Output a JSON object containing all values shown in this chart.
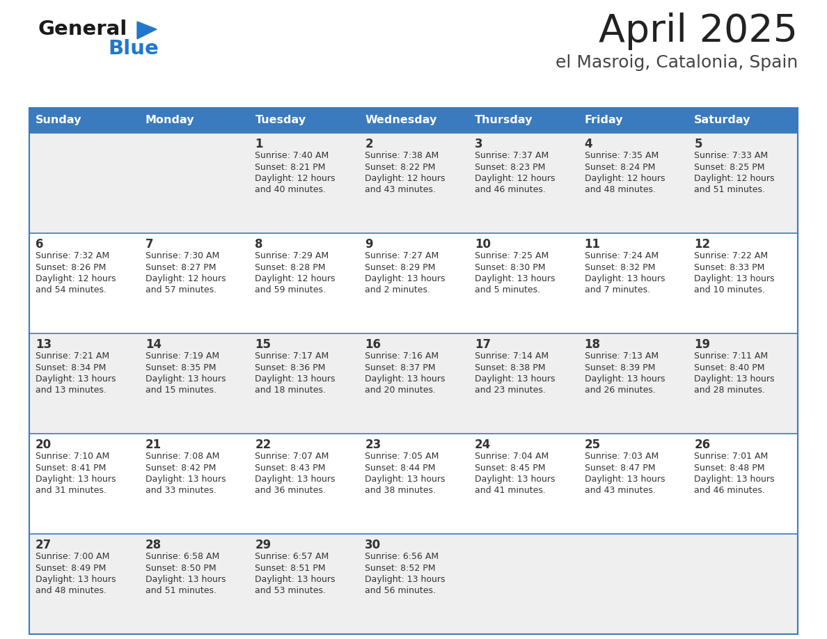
{
  "title": "April 2025",
  "subtitle": "el Masroig, Catalonia, Spain",
  "header_bg": "#3a7abf",
  "header_text_color": "#ffffff",
  "days_of_week": [
    "Sunday",
    "Monday",
    "Tuesday",
    "Wednesday",
    "Thursday",
    "Friday",
    "Saturday"
  ],
  "cell_bg_odd": "#efefef",
  "cell_bg_even": "#ffffff",
  "cell_border_color": "#3a7abf",
  "text_color": "#333333",
  "title_color": "#222222",
  "subtitle_color": "#444444",
  "calendar": [
    [
      {
        "day": "",
        "info": ""
      },
      {
        "day": "",
        "info": ""
      },
      {
        "day": "1",
        "info": "Sunrise: 7:40 AM\nSunset: 8:21 PM\nDaylight: 12 hours\nand 40 minutes."
      },
      {
        "day": "2",
        "info": "Sunrise: 7:38 AM\nSunset: 8:22 PM\nDaylight: 12 hours\nand 43 minutes."
      },
      {
        "day": "3",
        "info": "Sunrise: 7:37 AM\nSunset: 8:23 PM\nDaylight: 12 hours\nand 46 minutes."
      },
      {
        "day": "4",
        "info": "Sunrise: 7:35 AM\nSunset: 8:24 PM\nDaylight: 12 hours\nand 48 minutes."
      },
      {
        "day": "5",
        "info": "Sunrise: 7:33 AM\nSunset: 8:25 PM\nDaylight: 12 hours\nand 51 minutes."
      }
    ],
    [
      {
        "day": "6",
        "info": "Sunrise: 7:32 AM\nSunset: 8:26 PM\nDaylight: 12 hours\nand 54 minutes."
      },
      {
        "day": "7",
        "info": "Sunrise: 7:30 AM\nSunset: 8:27 PM\nDaylight: 12 hours\nand 57 minutes."
      },
      {
        "day": "8",
        "info": "Sunrise: 7:29 AM\nSunset: 8:28 PM\nDaylight: 12 hours\nand 59 minutes."
      },
      {
        "day": "9",
        "info": "Sunrise: 7:27 AM\nSunset: 8:29 PM\nDaylight: 13 hours\nand 2 minutes."
      },
      {
        "day": "10",
        "info": "Sunrise: 7:25 AM\nSunset: 8:30 PM\nDaylight: 13 hours\nand 5 minutes."
      },
      {
        "day": "11",
        "info": "Sunrise: 7:24 AM\nSunset: 8:32 PM\nDaylight: 13 hours\nand 7 minutes."
      },
      {
        "day": "12",
        "info": "Sunrise: 7:22 AM\nSunset: 8:33 PM\nDaylight: 13 hours\nand 10 minutes."
      }
    ],
    [
      {
        "day": "13",
        "info": "Sunrise: 7:21 AM\nSunset: 8:34 PM\nDaylight: 13 hours\nand 13 minutes."
      },
      {
        "day": "14",
        "info": "Sunrise: 7:19 AM\nSunset: 8:35 PM\nDaylight: 13 hours\nand 15 minutes."
      },
      {
        "day": "15",
        "info": "Sunrise: 7:17 AM\nSunset: 8:36 PM\nDaylight: 13 hours\nand 18 minutes."
      },
      {
        "day": "16",
        "info": "Sunrise: 7:16 AM\nSunset: 8:37 PM\nDaylight: 13 hours\nand 20 minutes."
      },
      {
        "day": "17",
        "info": "Sunrise: 7:14 AM\nSunset: 8:38 PM\nDaylight: 13 hours\nand 23 minutes."
      },
      {
        "day": "18",
        "info": "Sunrise: 7:13 AM\nSunset: 8:39 PM\nDaylight: 13 hours\nand 26 minutes."
      },
      {
        "day": "19",
        "info": "Sunrise: 7:11 AM\nSunset: 8:40 PM\nDaylight: 13 hours\nand 28 minutes."
      }
    ],
    [
      {
        "day": "20",
        "info": "Sunrise: 7:10 AM\nSunset: 8:41 PM\nDaylight: 13 hours\nand 31 minutes."
      },
      {
        "day": "21",
        "info": "Sunrise: 7:08 AM\nSunset: 8:42 PM\nDaylight: 13 hours\nand 33 minutes."
      },
      {
        "day": "22",
        "info": "Sunrise: 7:07 AM\nSunset: 8:43 PM\nDaylight: 13 hours\nand 36 minutes."
      },
      {
        "day": "23",
        "info": "Sunrise: 7:05 AM\nSunset: 8:44 PM\nDaylight: 13 hours\nand 38 minutes."
      },
      {
        "day": "24",
        "info": "Sunrise: 7:04 AM\nSunset: 8:45 PM\nDaylight: 13 hours\nand 41 minutes."
      },
      {
        "day": "25",
        "info": "Sunrise: 7:03 AM\nSunset: 8:47 PM\nDaylight: 13 hours\nand 43 minutes."
      },
      {
        "day": "26",
        "info": "Sunrise: 7:01 AM\nSunset: 8:48 PM\nDaylight: 13 hours\nand 46 minutes."
      }
    ],
    [
      {
        "day": "27",
        "info": "Sunrise: 7:00 AM\nSunset: 8:49 PM\nDaylight: 13 hours\nand 48 minutes."
      },
      {
        "day": "28",
        "info": "Sunrise: 6:58 AM\nSunset: 8:50 PM\nDaylight: 13 hours\nand 51 minutes."
      },
      {
        "day": "29",
        "info": "Sunrise: 6:57 AM\nSunset: 8:51 PM\nDaylight: 13 hours\nand 53 minutes."
      },
      {
        "day": "30",
        "info": "Sunrise: 6:56 AM\nSunset: 8:52 PM\nDaylight: 13 hours\nand 56 minutes."
      },
      {
        "day": "",
        "info": ""
      },
      {
        "day": "",
        "info": ""
      },
      {
        "day": "",
        "info": ""
      }
    ]
  ],
  "logo_general_color": "#1a1a1a",
  "logo_blue_color": "#2277cc",
  "fig_width": 11.88,
  "fig_height": 9.18,
  "dpi": 100
}
